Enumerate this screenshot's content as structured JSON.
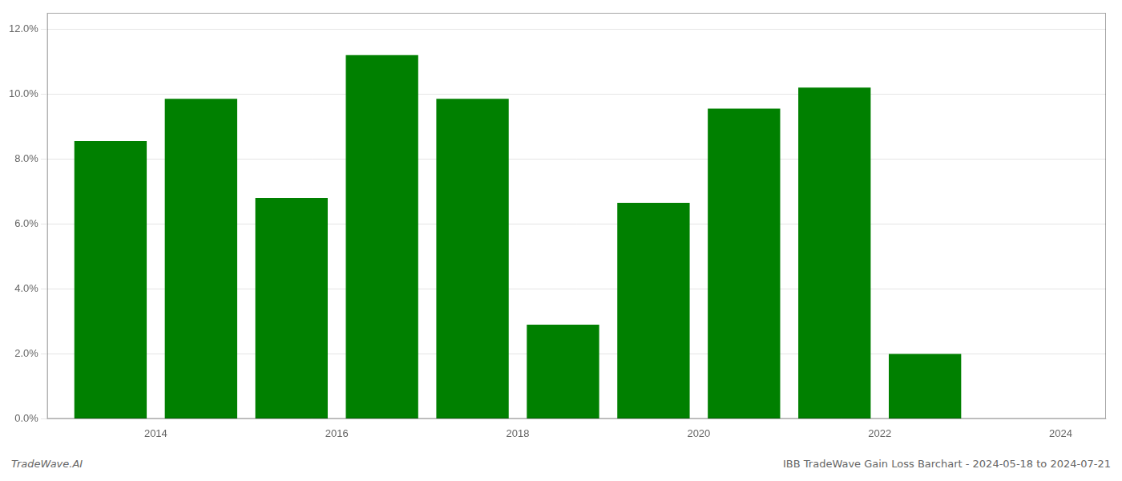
{
  "chart_data": {
    "type": "bar",
    "x": [
      2013.5,
      2014.5,
      2015.5,
      2016.5,
      2017.5,
      2018.5,
      2019.5,
      2020.5,
      2021.5,
      2022.5
    ],
    "values": [
      0.0855,
      0.0985,
      0.068,
      0.112,
      0.0985,
      0.029,
      0.0665,
      0.0955,
      0.102,
      0.02
    ],
    "color": "#008000",
    "xlim": [
      2012.8,
      2024.5
    ],
    "xticks": [
      2014,
      2016,
      2018,
      2020,
      2022,
      2024
    ],
    "ylim": [
      0.0,
      0.125
    ],
    "yticks": [
      {
        "value": 0.0,
        "label": "0.0%"
      },
      {
        "value": 0.02,
        "label": "2.0%"
      },
      {
        "value": 0.04,
        "label": "4.0%"
      },
      {
        "value": 0.06,
        "label": "6.0%"
      },
      {
        "value": 0.08,
        "label": "8.0%"
      },
      {
        "value": 0.1,
        "label": "10.0%"
      },
      {
        "value": 0.12,
        "label": "12.0%"
      }
    ],
    "grid": true,
    "annotations": [
      "TradeWave.AI",
      "IBB TradeWave Gain Loss Barchart - 2024-05-18 to 2024-07-21"
    ]
  }
}
